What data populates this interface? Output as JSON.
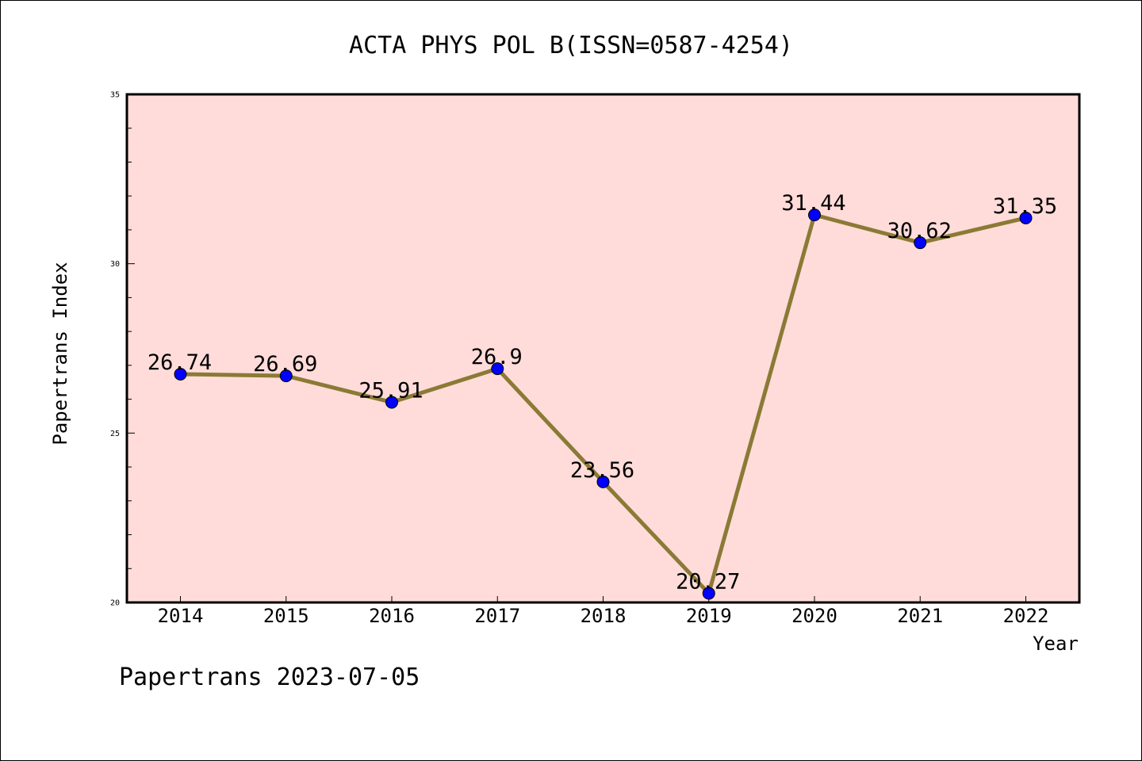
{
  "chart_data": {
    "type": "line",
    "title": "ACTA PHYS POL B(ISSN=0587-4254)",
    "xlabel": "Year",
    "ylabel": "Papertrans Index",
    "categories": [
      "2014",
      "2015",
      "2016",
      "2017",
      "2018",
      "2019",
      "2020",
      "2021",
      "2022"
    ],
    "values": [
      26.74,
      26.69,
      25.91,
      26.9,
      23.56,
      20.27,
      31.44,
      30.62,
      31.35
    ],
    "data_labels": [
      "26.74",
      "26.69",
      "25.91",
      "26.9",
      "23.56",
      "20.27",
      "31.44",
      "30.62",
      "31.35"
    ],
    "ylim": [
      20,
      35
    ],
    "yticks": [
      "20",
      "25",
      "30",
      "35"
    ],
    "grid": false,
    "legend": "none",
    "colors": {
      "plot_background": "#FFDCDA",
      "line": "#8B7A35",
      "marker": "#0000FF"
    }
  },
  "footer": "Papertrans 2023-07-05"
}
